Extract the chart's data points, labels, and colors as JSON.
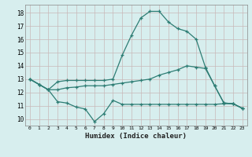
{
  "line_top_x": [
    0,
    1,
    2,
    3,
    4,
    5,
    6,
    7,
    8,
    9,
    10,
    11,
    12,
    13,
    14,
    15,
    16,
    17,
    18,
    19,
    20,
    21,
    22,
    23
  ],
  "line_top_y": [
    13.0,
    12.6,
    12.2,
    12.8,
    12.9,
    12.9,
    12.9,
    12.9,
    12.9,
    13.0,
    14.8,
    16.3,
    17.6,
    18.1,
    18.1,
    17.3,
    16.8,
    16.6,
    16.0,
    13.9,
    12.5,
    11.2,
    11.15,
    10.8
  ],
  "line_mid_x": [
    0,
    1,
    2,
    3,
    4,
    5,
    6,
    7,
    8,
    9,
    10,
    11,
    12,
    13,
    14,
    15,
    16,
    17,
    18,
    19,
    20,
    21,
    22,
    23
  ],
  "line_mid_y": [
    13.0,
    12.6,
    12.2,
    12.2,
    12.35,
    12.4,
    12.5,
    12.5,
    12.5,
    12.6,
    12.7,
    12.8,
    12.9,
    13.0,
    13.3,
    13.5,
    13.7,
    14.0,
    13.9,
    13.8,
    12.5,
    11.2,
    11.15,
    10.8
  ],
  "line_bot_x": [
    0,
    1,
    2,
    3,
    4,
    5,
    6,
    7,
    8,
    9,
    10,
    11,
    12,
    13,
    14,
    15,
    16,
    17,
    18,
    19,
    20,
    21,
    22,
    23
  ],
  "line_bot_y": [
    13.0,
    12.6,
    12.2,
    11.3,
    11.2,
    10.9,
    10.75,
    9.8,
    10.4,
    11.4,
    11.1,
    11.1,
    11.1,
    11.1,
    11.1,
    11.1,
    11.1,
    11.1,
    11.1,
    11.1,
    11.1,
    11.15,
    11.15,
    10.8
  ],
  "color": "#2d7d74",
  "bg_color": "#d7eeee",
  "grid_color_major": "#c8b8b8",
  "grid_color_minor": "#e0d0d0",
  "xlabel": "Humidex (Indice chaleur)",
  "ylim": [
    9.5,
    18.6
  ],
  "xlim": [
    -0.5,
    23.5
  ],
  "yticks": [
    10,
    11,
    12,
    13,
    14,
    15,
    16,
    17,
    18
  ],
  "xticks": [
    0,
    1,
    2,
    3,
    4,
    5,
    6,
    7,
    8,
    9,
    10,
    11,
    12,
    13,
    14,
    15,
    16,
    17,
    18,
    19,
    20,
    21,
    22,
    23
  ]
}
